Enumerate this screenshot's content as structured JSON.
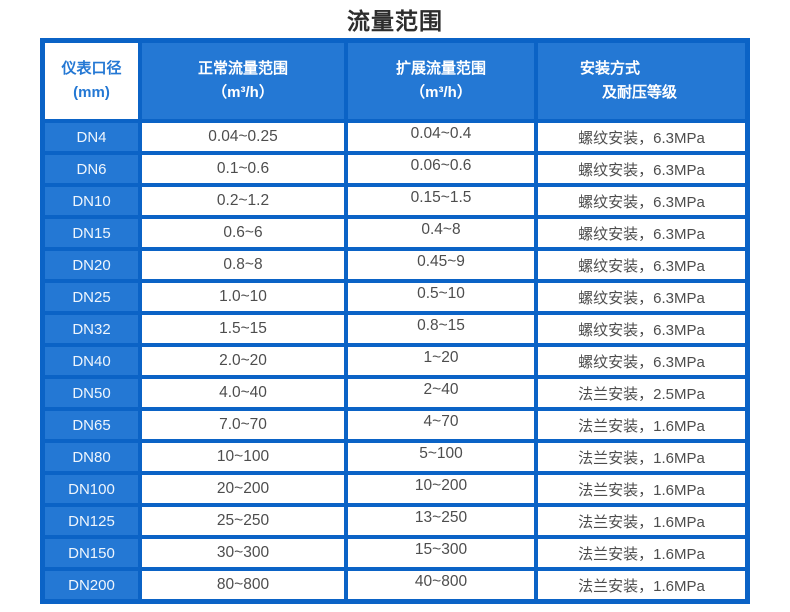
{
  "title": "流量范围",
  "colors": {
    "table_border_blue": "#0b63c6",
    "cell_blue": "#2478d4",
    "header_first_text_blue": "#2478d4",
    "value_text": "#4d4d4d",
    "title_text": "#2d2d2d"
  },
  "table": {
    "headers": [
      {
        "line1": "仪表口径",
        "line2": "(mm)"
      },
      {
        "line1": "正常流量范围",
        "line2": "（m³/h）"
      },
      {
        "line1": "扩展流量范围",
        "line2": "（m³/h）"
      },
      {
        "line1": "安装方式",
        "line2": "及耐压等级"
      }
    ],
    "rows": [
      {
        "dn": "DN4",
        "normal": "0.04~0.25",
        "extended": "0.04~0.4",
        "install": "螺纹安装，6.3MPa"
      },
      {
        "dn": "DN6",
        "normal": "0.1~0.6",
        "extended": "0.06~0.6",
        "install": "螺纹安装，6.3MPa"
      },
      {
        "dn": "DN10",
        "normal": "0.2~1.2",
        "extended": "0.15~1.5",
        "install": "螺纹安装，6.3MPa"
      },
      {
        "dn": "DN15",
        "normal": "0.6~6",
        "extended": "0.4~8",
        "install": "螺纹安装，6.3MPa"
      },
      {
        "dn": "DN20",
        "normal": "0.8~8",
        "extended": "0.45~9",
        "install": "螺纹安装，6.3MPa"
      },
      {
        "dn": "DN25",
        "normal": "1.0~10",
        "extended": "0.5~10",
        "install": "螺纹安装，6.3MPa"
      },
      {
        "dn": "DN32",
        "normal": "1.5~15",
        "extended": "0.8~15",
        "install": "螺纹安装，6.3MPa"
      },
      {
        "dn": "DN40",
        "normal": "2.0~20",
        "extended": "1~20",
        "install": "螺纹安装，6.3MPa"
      },
      {
        "dn": "DN50",
        "normal": "4.0~40",
        "extended": "2~40",
        "install": "法兰安装，2.5MPa"
      },
      {
        "dn": "DN65",
        "normal": "7.0~70",
        "extended": "4~70",
        "install": "法兰安装，1.6MPa"
      },
      {
        "dn": "DN80",
        "normal": "10~100",
        "extended": "5~100",
        "install": "法兰安装，1.6MPa"
      },
      {
        "dn": "DN100",
        "normal": "20~200",
        "extended": "10~200",
        "install": "法兰安装，1.6MPa"
      },
      {
        "dn": "DN125",
        "normal": "25~250",
        "extended": "13~250",
        "install": "法兰安装，1.6MPa"
      },
      {
        "dn": "DN150",
        "normal": "30~300",
        "extended": "15~300",
        "install": "法兰安装，1.6MPa"
      },
      {
        "dn": "DN200",
        "normal": "80~800",
        "extended": "40~800",
        "install": "法兰安装，1.6MPa"
      }
    ]
  },
  "chart_data": {
    "type": "table",
    "title": "流量范围",
    "columns": [
      "仪表口径(mm)",
      "正常流量范围（m³/h）",
      "扩展流量范围（m³/h）",
      "安装方式及耐压等级"
    ],
    "rows": [
      [
        "DN4",
        "0.04~0.25",
        "0.04~0.4",
        "螺纹安装，6.3MPa"
      ],
      [
        "DN6",
        "0.1~0.6",
        "0.06~0.6",
        "螺纹安装，6.3MPa"
      ],
      [
        "DN10",
        "0.2~1.2",
        "0.15~1.5",
        "螺纹安装，6.3MPa"
      ],
      [
        "DN15",
        "0.6~6",
        "0.4~8",
        "螺纹安装，6.3MPa"
      ],
      [
        "DN20",
        "0.8~8",
        "0.45~9",
        "螺纹安装，6.3MPa"
      ],
      [
        "DN25",
        "1.0~10",
        "0.5~10",
        "螺纹安装，6.3MPa"
      ],
      [
        "DN32",
        "1.5~15",
        "0.8~15",
        "螺纹安装，6.3MPa"
      ],
      [
        "DN40",
        "2.0~20",
        "1~20",
        "螺纹安装，6.3MPa"
      ],
      [
        "DN50",
        "4.0~40",
        "2~40",
        "法兰安装，2.5MPa"
      ],
      [
        "DN65",
        "7.0~70",
        "4~70",
        "法兰安装，1.6MPa"
      ],
      [
        "DN80",
        "10~100",
        "5~100",
        "法兰安装，1.6MPa"
      ],
      [
        "DN100",
        "20~200",
        "10~200",
        "法兰安装，1.6MPa"
      ],
      [
        "DN125",
        "25~250",
        "13~250",
        "法兰安装，1.6MPa"
      ],
      [
        "DN150",
        "30~300",
        "15~300",
        "法兰安装，1.6MPa"
      ],
      [
        "DN200",
        "80~800",
        "40~800",
        "法兰安装，1.6MPa"
      ]
    ]
  }
}
